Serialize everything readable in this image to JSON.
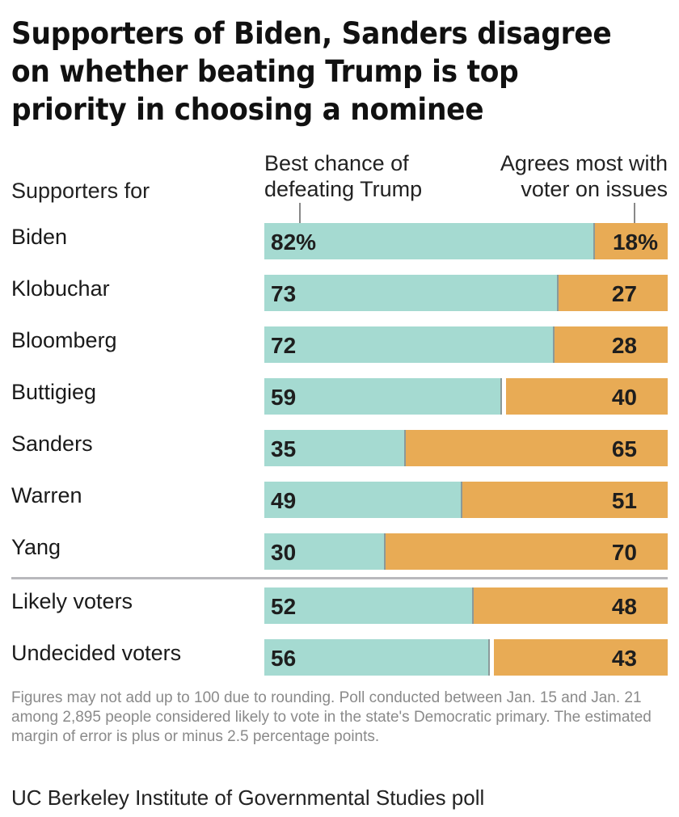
{
  "chart_data": {
    "type": "bar",
    "orientation": "horizontal",
    "stacked": true,
    "title": "Supporters of Biden, Sanders disagree on whether beating Trump is top priority in choosing a nominee",
    "row_header": "Supporters for",
    "categories": [
      "Biden",
      "Klobuchar",
      "Bloomberg",
      "Buttigieg",
      "Sanders",
      "Warren",
      "Yang",
      "Likely voters",
      "Undecided voters"
    ],
    "group_break_after": "Yang",
    "series": [
      {
        "name": "Best chance of defeating Trump",
        "color": "#a5dad1",
        "values": [
          82,
          73,
          72,
          59,
          35,
          49,
          30,
          52,
          56
        ]
      },
      {
        "name": "Agrees most with voter on issues",
        "color": "#e8ab55",
        "values": [
          18,
          27,
          28,
          40,
          65,
          51,
          70,
          48,
          43
        ]
      }
    ],
    "value_labels": {
      "a": [
        "82%",
        "73",
        "72",
        "59",
        "35",
        "49",
        "30",
        "52",
        "56"
      ],
      "b": [
        "18%",
        "27",
        "28",
        "40",
        "65",
        "51",
        "70",
        "48",
        "43"
      ]
    },
    "xlim": [
      0,
      100
    ],
    "units": "percent",
    "legend": "column headers above bars",
    "note": "Figures may not add up to 100 due to rounding. Poll conducted between Jan. 15 and Jan. 21 among 2,895 people considered likely to vote in the state's Democratic primary. The estimated margin of error is plus or minus 2.5 percentage points.",
    "source": "UC Berkeley Institute of Governmental Studies poll"
  },
  "headers": {
    "left": "Supporters for",
    "a_line1": "Best chance of",
    "a_line2": "defeating Trump",
    "b_line1": "Agrees most with",
    "b_line2": "voter on issues"
  }
}
